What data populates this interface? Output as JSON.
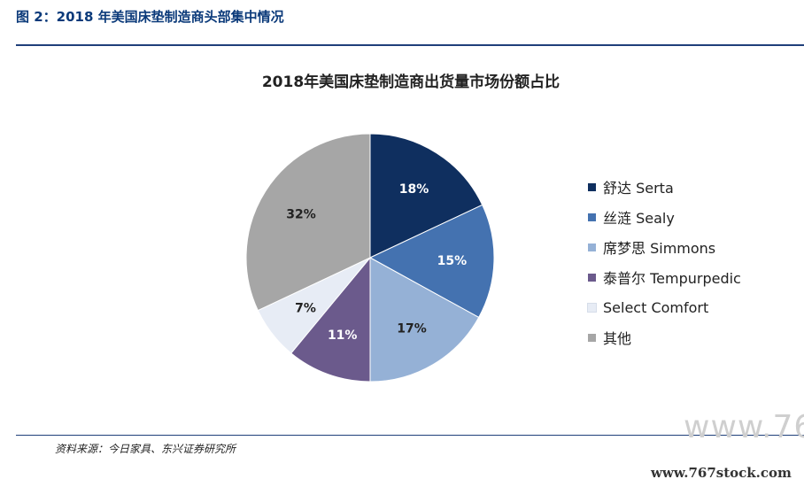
{
  "figure_title": "图 2：2018 年美国床垫制造商头部集中情况",
  "source_note": "资料来源：今日家具、东兴证券研究所",
  "watermark_large": "www.76",
  "watermark_url": "www.767stock.com",
  "chart_data": {
    "type": "pie",
    "title": "2018年美国床垫制造商出货量市场份额占比",
    "legend_position": "right",
    "slices": [
      {
        "label": "舒达 Serta",
        "value": 18,
        "value_label": "18%",
        "color": "#0f2f5f"
      },
      {
        "label": "丝涟 Sealy",
        "value": 15,
        "value_label": "15%",
        "color": "#4472b0"
      },
      {
        "label": "席梦思 Simmons",
        "value": 17,
        "value_label": "17%",
        "color": "#95b1d6"
      },
      {
        "label": "泰普尔 Tempurpedic",
        "value": 11,
        "value_label": "11%",
        "color": "#6b5a8c"
      },
      {
        "label": "Select Comfort",
        "value": 7,
        "value_label": "7%",
        "color": "#e7ecf5"
      },
      {
        "label": "其他",
        "value": 32,
        "value_label": "32%",
        "color": "#a6a6a6"
      }
    ]
  }
}
